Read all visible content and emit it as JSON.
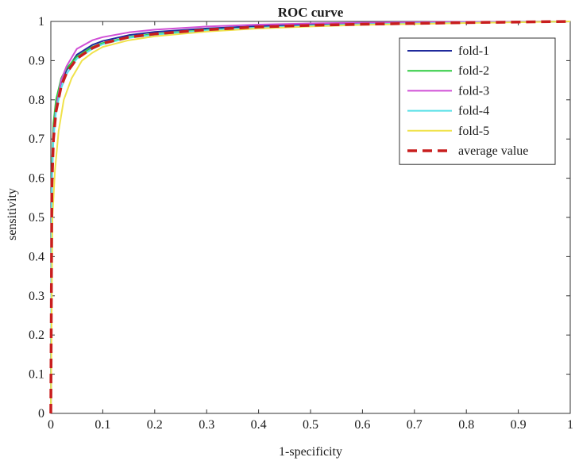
{
  "chart_data": {
    "type": "line",
    "title": "ROC curve",
    "xlabel": "1-specificity",
    "ylabel": "sensitivity",
    "xlim": [
      0,
      1
    ],
    "ylim": [
      0,
      1
    ],
    "x_ticks": [
      "0",
      "0.1",
      "0.2",
      "0.3",
      "0.4",
      "0.5",
      "0.6",
      "0.7",
      "0.8",
      "0.9",
      "1"
    ],
    "y_ticks": [
      "0",
      "0.1",
      "0.2",
      "0.3",
      "0.4",
      "0.5",
      "0.6",
      "0.7",
      "0.8",
      "0.9",
      "1"
    ],
    "grid": false,
    "legend_position": "top-right",
    "series": [
      {
        "name": "fold-1",
        "color": "#1f2a9c",
        "dashed": false,
        "points": [
          [
            0,
            0
          ],
          [
            0.002,
            0.6
          ],
          [
            0.005,
            0.72
          ],
          [
            0.01,
            0.79
          ],
          [
            0.02,
            0.845
          ],
          [
            0.03,
            0.875
          ],
          [
            0.05,
            0.915
          ],
          [
            0.08,
            0.94
          ],
          [
            0.1,
            0.95
          ],
          [
            0.15,
            0.965
          ],
          [
            0.2,
            0.973
          ],
          [
            0.3,
            0.982
          ],
          [
            0.4,
            0.988
          ],
          [
            0.5,
            0.992
          ],
          [
            0.6,
            0.995
          ],
          [
            0.8,
            0.998
          ],
          [
            1,
            1
          ]
        ]
      },
      {
        "name": "fold-2",
        "color": "#2ecc40",
        "dashed": false,
        "points": [
          [
            0,
            0
          ],
          [
            0.002,
            0.62
          ],
          [
            0.005,
            0.74
          ],
          [
            0.01,
            0.8
          ],
          [
            0.02,
            0.855
          ],
          [
            0.03,
            0.88
          ],
          [
            0.05,
            0.91
          ],
          [
            0.08,
            0.935
          ],
          [
            0.1,
            0.945
          ],
          [
            0.15,
            0.96
          ],
          [
            0.2,
            0.968
          ],
          [
            0.3,
            0.978
          ],
          [
            0.4,
            0.984
          ],
          [
            0.5,
            0.989
          ],
          [
            0.6,
            0.992
          ],
          [
            0.8,
            0.997
          ],
          [
            1,
            1
          ]
        ]
      },
      {
        "name": "fold-3",
        "color": "#d04fd6",
        "dashed": false,
        "points": [
          [
            0,
            0
          ],
          [
            0.002,
            0.58
          ],
          [
            0.005,
            0.71
          ],
          [
            0.01,
            0.78
          ],
          [
            0.02,
            0.85
          ],
          [
            0.03,
            0.885
          ],
          [
            0.05,
            0.93
          ],
          [
            0.08,
            0.952
          ],
          [
            0.1,
            0.96
          ],
          [
            0.15,
            0.972
          ],
          [
            0.2,
            0.979
          ],
          [
            0.3,
            0.987
          ],
          [
            0.4,
            0.992
          ],
          [
            0.5,
            0.995
          ],
          [
            0.6,
            0.997
          ],
          [
            0.8,
            0.999
          ],
          [
            1,
            1
          ]
        ]
      },
      {
        "name": "fold-4",
        "color": "#56e0e8",
        "dashed": false,
        "points": [
          [
            0,
            0
          ],
          [
            0.002,
            0.6
          ],
          [
            0.005,
            0.7
          ],
          [
            0.01,
            0.77
          ],
          [
            0.02,
            0.83
          ],
          [
            0.03,
            0.865
          ],
          [
            0.05,
            0.905
          ],
          [
            0.08,
            0.93
          ],
          [
            0.1,
            0.942
          ],
          [
            0.15,
            0.958
          ],
          [
            0.2,
            0.966
          ],
          [
            0.3,
            0.977
          ],
          [
            0.4,
            0.984
          ],
          [
            0.5,
            0.989
          ],
          [
            0.6,
            0.993
          ],
          [
            0.8,
            0.997
          ],
          [
            1,
            1
          ]
        ]
      },
      {
        "name": "fold-5",
        "color": "#f0e24a",
        "dashed": false,
        "points": [
          [
            0,
            0
          ],
          [
            0.003,
            0.5
          ],
          [
            0.008,
            0.62
          ],
          [
            0.015,
            0.72
          ],
          [
            0.025,
            0.8
          ],
          [
            0.04,
            0.855
          ],
          [
            0.06,
            0.9
          ],
          [
            0.08,
            0.92
          ],
          [
            0.1,
            0.935
          ],
          [
            0.15,
            0.952
          ],
          [
            0.2,
            0.962
          ],
          [
            0.3,
            0.974
          ],
          [
            0.4,
            0.982
          ],
          [
            0.5,
            0.987
          ],
          [
            0.6,
            0.991
          ],
          [
            0.8,
            0.996
          ],
          [
            1,
            1
          ]
        ]
      },
      {
        "name": "average value",
        "color": "#c81e1e",
        "dashed": true,
        "points": [
          [
            0,
            0
          ],
          [
            0.002,
            0.58
          ],
          [
            0.005,
            0.7
          ],
          [
            0.01,
            0.77
          ],
          [
            0.02,
            0.835
          ],
          [
            0.03,
            0.868
          ],
          [
            0.05,
            0.905
          ],
          [
            0.08,
            0.932
          ],
          [
            0.1,
            0.944
          ],
          [
            0.15,
            0.96
          ],
          [
            0.2,
            0.968
          ],
          [
            0.3,
            0.979
          ],
          [
            0.4,
            0.986
          ],
          [
            0.5,
            0.99
          ],
          [
            0.6,
            0.993
          ],
          [
            0.8,
            0.997
          ],
          [
            1,
            1
          ]
        ]
      }
    ]
  }
}
